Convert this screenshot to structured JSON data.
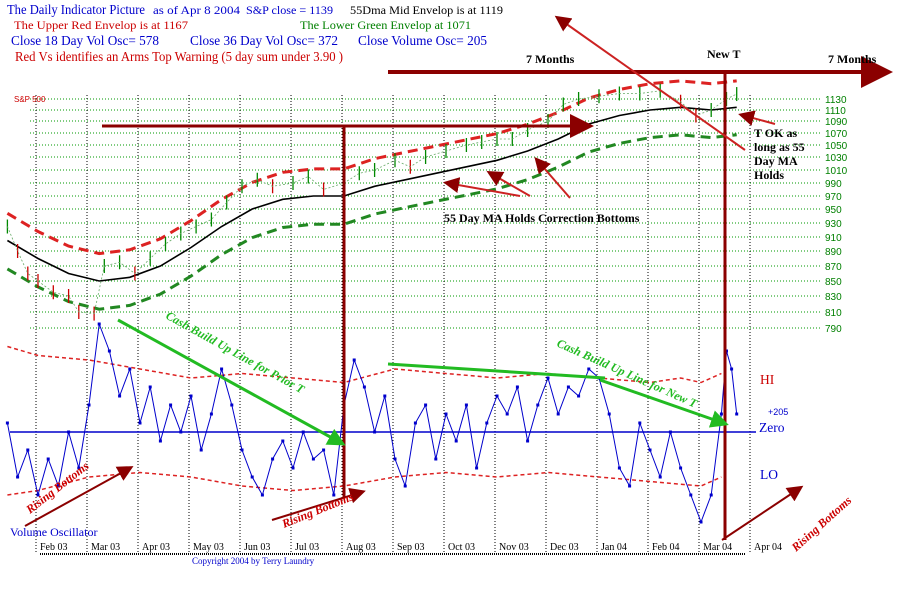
{
  "header": {
    "title": "The Daily Indicator Picture",
    "asof": "as of Apr 8  2004",
    "sp_close": "S&P close = 1139",
    "mid_envelope": "55Dma  Mid Envelop is at 1119",
    "upper_envelope": "The  Upper Red Envelop is at  1167",
    "lower_envelope": "The Lower Green Envelop at  1071",
    "vol18": "Close 18 Day Vol Osc=  578",
    "vol36": "Close 36 Day Vol Osc=  372",
    "volclose": "Close Volume Osc=  205",
    "arms_note": "Red Vs identifies an  Arms Top Warning (5 day sum under 3.90 )"
  },
  "annotations": {
    "seven_months_1": "7 Months",
    "seven_months_2": "7 Months",
    "new_t": "New T",
    "sp500": "S&P 500",
    "t_ok": [
      "T OK as",
      "long as 55",
      "Day MA",
      "Holds"
    ],
    "ma_holds": "55 Day MA Holds Correction Bottoms",
    "cash_prior": "Cash Build Up Line for Prior T",
    "cash_new": "Cash Build Up Line for New T",
    "rising_1": "Rising Bottoms",
    "rising_2": "Rising Bottoms",
    "rising_3": "Rising Bottoms",
    "hi": "HI",
    "zero": "Zero",
    "lo": "LO",
    "osc_value": "+205",
    "vol_osc": "Volume Oscillator",
    "copyright": "Copyright 2004 by Terry Laundry"
  },
  "colors": {
    "red": "#cc0000",
    "darkred": "#8b0000",
    "green": "#008000",
    "brightgreen": "#22bb22",
    "blue": "#0000cc"
  },
  "chart_data": {
    "type": "line",
    "title": "The Daily Indicator Picture",
    "x_unit": "months since Jan 1 2003",
    "month_labels": [
      "Feb 03",
      "Mar 03",
      "Apr 03",
      "May 03",
      "Jun 03",
      "Jul 03",
      "Aug 03",
      "Sep 03",
      "Oct 03",
      "Nov 03",
      "Dec 03",
      "Jan 04",
      "Feb 04",
      "Mar 04",
      "Apr 04"
    ],
    "price_ticks": [
      1130,
      1110,
      1090,
      1070,
      1050,
      1030,
      1010,
      990,
      970,
      950,
      930,
      910,
      890,
      870,
      850,
      830,
      810,
      790
    ],
    "envelope_factor": 0.043,
    "sp500": [
      [
        0.4,
        925
      ],
      [
        0.6,
        890
      ],
      [
        0.8,
        860
      ],
      [
        1.0,
        850
      ],
      [
        1.3,
        835
      ],
      [
        1.6,
        830
      ],
      [
        1.8,
        810
      ],
      [
        2.1,
        808
      ],
      [
        2.3,
        870
      ],
      [
        2.6,
        875
      ],
      [
        2.9,
        860
      ],
      [
        3.2,
        880
      ],
      [
        3.5,
        900
      ],
      [
        3.8,
        915
      ],
      [
        4.1,
        925
      ],
      [
        4.4,
        935
      ],
      [
        4.7,
        960
      ],
      [
        5.0,
        985
      ],
      [
        5.3,
        995
      ],
      [
        5.6,
        985
      ],
      [
        6.0,
        990
      ],
      [
        6.3,
        1000
      ],
      [
        6.6,
        980
      ],
      [
        7.0,
        990
      ],
      [
        7.3,
        1005
      ],
      [
        7.6,
        1010
      ],
      [
        8.0,
        1025
      ],
      [
        8.3,
        1015
      ],
      [
        8.6,
        1030
      ],
      [
        9.0,
        1040
      ],
      [
        9.4,
        1050
      ],
      [
        9.7,
        1055
      ],
      [
        10.0,
        1060
      ],
      [
        10.3,
        1060
      ],
      [
        10.6,
        1075
      ],
      [
        11.0,
        1090
      ],
      [
        11.3,
        1120
      ],
      [
        11.6,
        1130
      ],
      [
        12.0,
        1135
      ],
      [
        12.4,
        1140
      ],
      [
        12.8,
        1140
      ],
      [
        13.2,
        1145
      ],
      [
        13.6,
        1125
      ],
      [
        13.9,
        1100
      ],
      [
        14.2,
        1110
      ],
      [
        14.5,
        1130
      ],
      [
        14.7,
        1139
      ]
    ],
    "ma55": [
      [
        0.4,
        905
      ],
      [
        1.0,
        880
      ],
      [
        1.6,
        860
      ],
      [
        2.2,
        850
      ],
      [
        2.8,
        855
      ],
      [
        3.4,
        870
      ],
      [
        4.0,
        895
      ],
      [
        4.6,
        925
      ],
      [
        5.2,
        950
      ],
      [
        5.8,
        965
      ],
      [
        6.4,
        970
      ],
      [
        7.0,
        970
      ],
      [
        7.6,
        985
      ],
      [
        8.2,
        995
      ],
      [
        8.8,
        1005
      ],
      [
        9.4,
        1015
      ],
      [
        10.0,
        1025
      ],
      [
        10.6,
        1040
      ],
      [
        11.2,
        1060
      ],
      [
        11.8,
        1085
      ],
      [
        12.4,
        1100
      ],
      [
        13.0,
        1110
      ],
      [
        13.6,
        1115
      ],
      [
        14.2,
        1110
      ],
      [
        14.7,
        1115
      ]
    ],
    "volume_osc": [
      [
        0.4,
        100
      ],
      [
        0.6,
        -500
      ],
      [
        0.8,
        -200
      ],
      [
        1.0,
        -700
      ],
      [
        1.2,
        -300
      ],
      [
        1.4,
        -600
      ],
      [
        1.6,
        0
      ],
      [
        1.8,
        -400
      ],
      [
        2.0,
        300
      ],
      [
        2.2,
        1200
      ],
      [
        2.4,
        900
      ],
      [
        2.6,
        400
      ],
      [
        2.8,
        700
      ],
      [
        3.0,
        100
      ],
      [
        3.2,
        500
      ],
      [
        3.4,
        -100
      ],
      [
        3.6,
        300
      ],
      [
        3.8,
        0
      ],
      [
        4.0,
        400
      ],
      [
        4.2,
        -200
      ],
      [
        4.4,
        200
      ],
      [
        4.6,
        700
      ],
      [
        4.8,
        300
      ],
      [
        5.0,
        -200
      ],
      [
        5.2,
        -500
      ],
      [
        5.4,
        -700
      ],
      [
        5.6,
        -300
      ],
      [
        5.8,
        -100
      ],
      [
        6.0,
        -400
      ],
      [
        6.2,
        0
      ],
      [
        6.4,
        -300
      ],
      [
        6.6,
        -200
      ],
      [
        6.8,
        -700
      ],
      [
        7.0,
        300
      ],
      [
        7.2,
        800
      ],
      [
        7.4,
        500
      ],
      [
        7.6,
        0
      ],
      [
        7.8,
        400
      ],
      [
        8.0,
        -300
      ],
      [
        8.2,
        -600
      ],
      [
        8.4,
        100
      ],
      [
        8.6,
        300
      ],
      [
        8.8,
        -300
      ],
      [
        9.0,
        200
      ],
      [
        9.2,
        -100
      ],
      [
        9.4,
        300
      ],
      [
        9.6,
        -400
      ],
      [
        9.8,
        100
      ],
      [
        10.0,
        400
      ],
      [
        10.2,
        200
      ],
      [
        10.4,
        500
      ],
      [
        10.6,
        -100
      ],
      [
        10.8,
        300
      ],
      [
        11.0,
        600
      ],
      [
        11.2,
        200
      ],
      [
        11.4,
        500
      ],
      [
        11.6,
        400
      ],
      [
        11.8,
        700
      ],
      [
        12.0,
        600
      ],
      [
        12.2,
        200
      ],
      [
        12.4,
        -400
      ],
      [
        12.6,
        -600
      ],
      [
        12.8,
        100
      ],
      [
        13.0,
        -200
      ],
      [
        13.2,
        -500
      ],
      [
        13.4,
        0
      ],
      [
        13.6,
        -400
      ],
      [
        13.8,
        -700
      ],
      [
        14.0,
        -1000
      ],
      [
        14.2,
        -700
      ],
      [
        14.4,
        200
      ],
      [
        14.5,
        900
      ],
      [
        14.6,
        700
      ],
      [
        14.7,
        200
      ]
    ],
    "osc_hi_band": [
      [
        0.4,
        950
      ],
      [
        1.0,
        850
      ],
      [
        2.0,
        800
      ],
      [
        3.0,
        700
      ],
      [
        4.0,
        600
      ],
      [
        5.0,
        650
      ],
      [
        6.0,
        600
      ],
      [
        7.0,
        550
      ],
      [
        8.0,
        700
      ],
      [
        9.0,
        650
      ],
      [
        10.0,
        600
      ],
      [
        11.0,
        650
      ],
      [
        12.0,
        600
      ],
      [
        13.0,
        550
      ],
      [
        13.6,
        600
      ],
      [
        14.0,
        550
      ],
      [
        14.4,
        650
      ]
    ],
    "osc_lo_band": [
      [
        0.4,
        -700
      ],
      [
        1.0,
        -650
      ],
      [
        2.0,
        -500
      ],
      [
        3.0,
        -450
      ],
      [
        4.0,
        -500
      ],
      [
        5.0,
        -600
      ],
      [
        6.0,
        -650
      ],
      [
        7.0,
        -600
      ],
      [
        8.0,
        -500
      ],
      [
        9.0,
        -450
      ],
      [
        10.0,
        -500
      ],
      [
        11.0,
        -450
      ],
      [
        12.0,
        -500
      ],
      [
        13.0,
        -550
      ],
      [
        14.0,
        -600
      ],
      [
        14.4,
        -500
      ]
    ]
  }
}
